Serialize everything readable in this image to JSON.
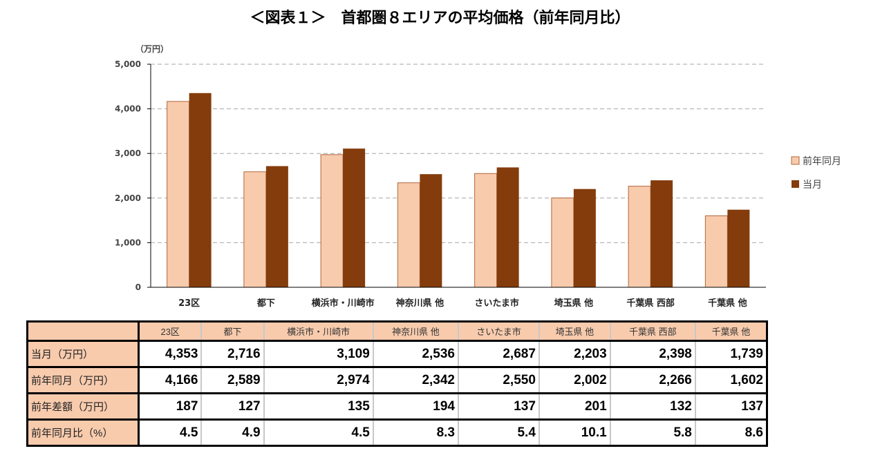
{
  "title": "＜図表１＞　首都圏８エリアの平均価格（前年同月比）",
  "chart_data": {
    "type": "bar",
    "ylabel": "（万円）",
    "ylim": [
      0,
      5000
    ],
    "yticks": [
      "0",
      "1,000",
      "2,000",
      "3,000",
      "4,000",
      "5,000"
    ],
    "grid": true,
    "legend_position": "right",
    "categories": [
      "23区",
      "都下",
      "横浜市・川崎市",
      "神奈川県 他",
      "さいたま市",
      "埼玉県 他",
      "千葉県 西部",
      "千葉県 他"
    ],
    "series": [
      {
        "name": "前年同月",
        "color": "#f8cbad",
        "values": [
          4166,
          2589,
          2974,
          2342,
          2550,
          2002,
          2266,
          1602
        ]
      },
      {
        "name": "当月",
        "color": "#843c0c",
        "values": [
          4353,
          2716,
          3109,
          2536,
          2687,
          2203,
          2398,
          1739
        ]
      }
    ]
  },
  "table": {
    "headers": [
      "23区",
      "都下",
      "横浜市・川崎市",
      "神奈川県 他",
      "さいたま市",
      "埼玉県 他",
      "千葉県 西部",
      "千葉県 他"
    ],
    "rows": [
      {
        "label": "当月（万円）",
        "values": [
          "4,353",
          "2,716",
          "3,109",
          "2,536",
          "2,687",
          "2,203",
          "2,398",
          "1,739"
        ]
      },
      {
        "label": "前年同月（万円）",
        "values": [
          "4,166",
          "2,589",
          "2,974",
          "2,342",
          "2,550",
          "2,002",
          "2,266",
          "1,602"
        ]
      },
      {
        "label": "前年差額（万円）",
        "values": [
          "187",
          "127",
          "135",
          "194",
          "137",
          "201",
          "132",
          "137"
        ]
      },
      {
        "label": "前年同月比（%）",
        "values": [
          "4.5",
          "4.9",
          "4.5",
          "8.3",
          "5.4",
          "10.1",
          "5.8",
          "8.6"
        ]
      }
    ]
  }
}
